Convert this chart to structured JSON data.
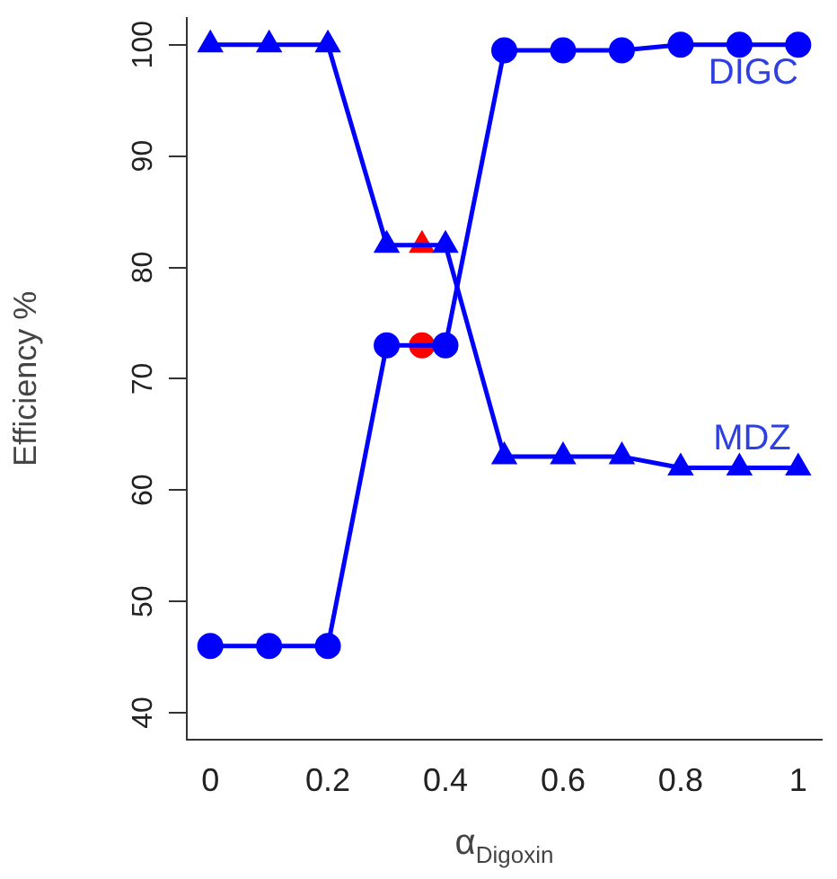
{
  "chart_data": {
    "type": "line",
    "xlabel": "α$_{Digoxin}$",
    "ylabel": "Efficiency %",
    "xlim": [
      -0.04,
      1.04
    ],
    "ylim": [
      37.6,
      102.4
    ],
    "xticks": [
      0,
      0.2,
      0.4,
      0.6,
      0.8,
      1
    ],
    "yticks": [
      40,
      50,
      60,
      70,
      80,
      90,
      100
    ],
    "grid": false,
    "legend": false,
    "line_style": "solid",
    "x": [
      0,
      0.1,
      0.2,
      0.3,
      0.4,
      0.5,
      0.6,
      0.7,
      0.8,
      0.9,
      1
    ],
    "series": [
      {
        "name": "DIGC",
        "color": "#0000ff",
        "marker": "circle",
        "values": [
          46,
          46,
          46,
          73,
          73,
          99.5,
          99.5,
          99.5,
          100,
          100,
          100
        ]
      },
      {
        "name": "MDZ",
        "color": "#0000ff",
        "marker": "triangle",
        "values": [
          100,
          100,
          100,
          82,
          82,
          63,
          63,
          63,
          62,
          62,
          62
        ]
      },
      {
        "type": "scatter",
        "color": "#ff0000",
        "marker": "circle",
        "x": [
          0.36
        ],
        "values": [
          73
        ]
      },
      {
        "type": "scatter",
        "color": "#ff0000",
        "marker": "triangle",
        "x": [
          0.36
        ],
        "values": [
          82
        ]
      }
    ]
  }
}
